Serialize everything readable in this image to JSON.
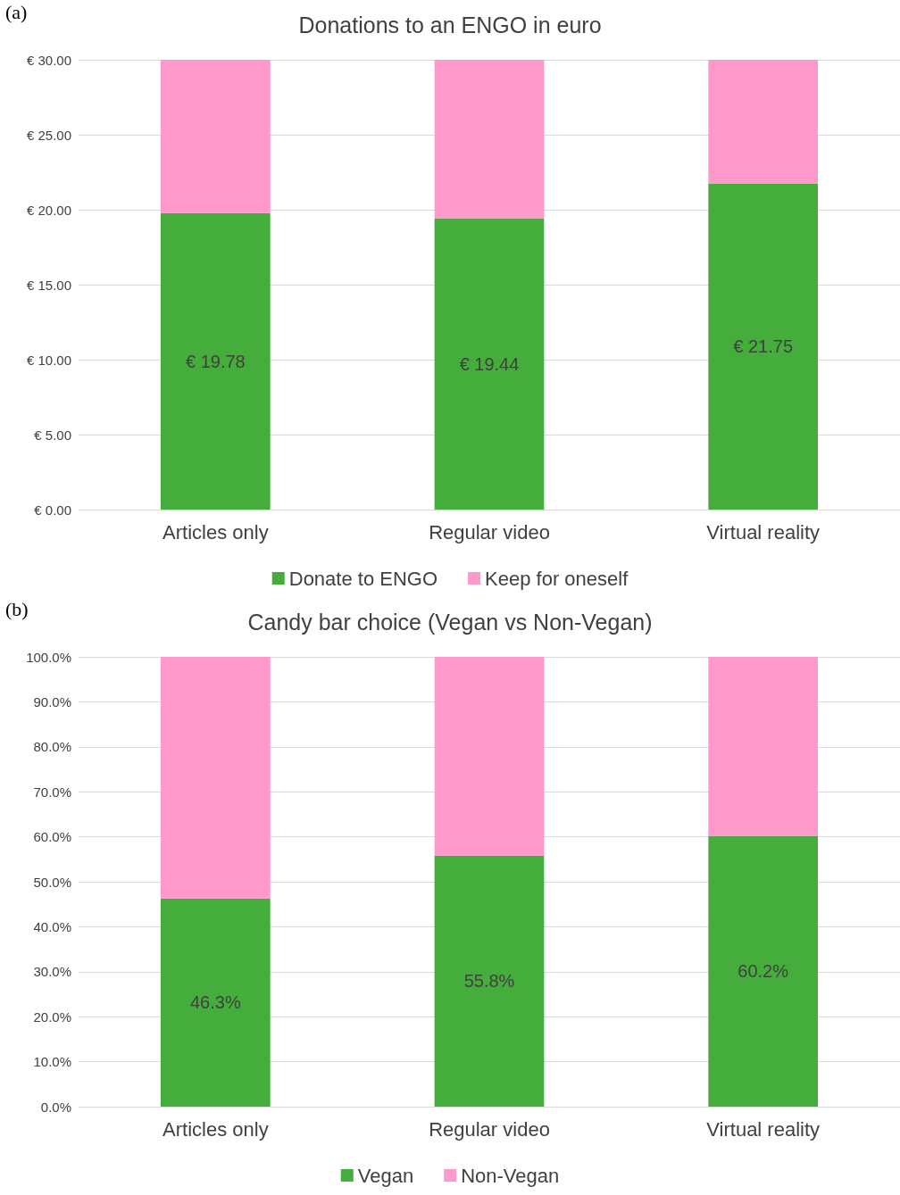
{
  "chart_data": [
    {
      "type": "bar",
      "title": "Donations to an ENGO in euro",
      "annotations": [
        "(a)"
      ],
      "categories": [
        "Articles only",
        "Regular video",
        "Virtual reality"
      ],
      "stacked": true,
      "series": [
        {
          "name": "Donate to ENGO",
          "color": "#45ad3b",
          "values": [
            19.78,
            19.44,
            21.75
          ],
          "value_labels": [
            "€ 19.78",
            "€ 19.44",
            "€ 21.75"
          ]
        },
        {
          "name": "Keep for oneself",
          "color": "#ff99cc",
          "values": [
            10.22,
            10.56,
            8.25
          ]
        }
      ],
      "ylim": [
        0,
        30
      ],
      "yticks": [
        {
          "value": 0,
          "label": "€ 0.00"
        },
        {
          "value": 5,
          "label": "€ 5.00"
        },
        {
          "value": 10,
          "label": "€ 10.00"
        },
        {
          "value": 15,
          "label": "€ 15.00"
        },
        {
          "value": 20,
          "label": "€ 20.00"
        },
        {
          "value": 25,
          "label": "€ 25.00"
        },
        {
          "value": 30,
          "label": "€ 30.00"
        }
      ],
      "grid": "y",
      "legend": "bottom"
    },
    {
      "type": "bar",
      "title": "Candy bar choice (Vegan vs Non-Vegan)",
      "annotations": [
        "(b)"
      ],
      "categories": [
        "Articles only",
        "Regular video",
        "Virtual reality"
      ],
      "stacked": true,
      "series": [
        {
          "name": "Vegan",
          "color": "#45ad3b",
          "values": [
            46.3,
            55.8,
            60.2
          ],
          "value_labels": [
            "46.3%",
            "55.8%",
            "60.2%"
          ]
        },
        {
          "name": "Non-Vegan",
          "color": "#ff99cc",
          "values": [
            53.7,
            44.2,
            39.8
          ]
        }
      ],
      "ylim": [
        0,
        100
      ],
      "yticks": [
        {
          "value": 0,
          "label": "0.0%"
        },
        {
          "value": 10,
          "label": "10.0%"
        },
        {
          "value": 20,
          "label": "20.0%"
        },
        {
          "value": 30,
          "label": "30.0%"
        },
        {
          "value": 40,
          "label": "40.0%"
        },
        {
          "value": 50,
          "label": "50.0%"
        },
        {
          "value": 60,
          "label": "60.0%"
        },
        {
          "value": 70,
          "label": "70.0%"
        },
        {
          "value": 80,
          "label": "80.0%"
        },
        {
          "value": 90,
          "label": "90.0%"
        },
        {
          "value": 100,
          "label": "100.0%"
        }
      ],
      "grid": "y",
      "legend": "bottom"
    }
  ]
}
